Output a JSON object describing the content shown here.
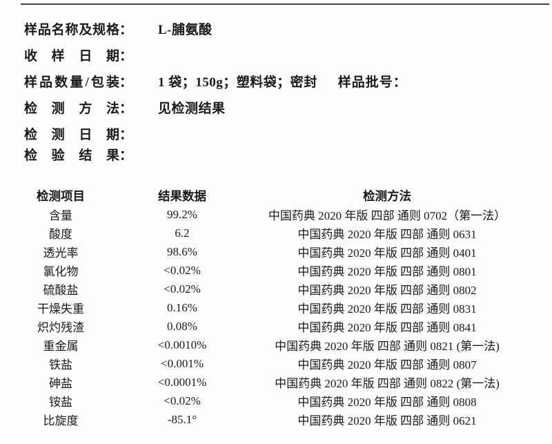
{
  "document": {
    "header": {
      "colon": "：",
      "fields": [
        {
          "name": "sample-name-spec",
          "label": "样品名称及规格",
          "value": "L-脯氨酸"
        },
        {
          "name": "receive-date",
          "label": "收样日期",
          "value": ""
        },
        {
          "name": "quantity-package",
          "label": "样品数量/包装",
          "value": "1 袋；150g；塑料袋；密封",
          "extra_label": "样品批号："
        },
        {
          "name": "test-method",
          "label": "检测方法",
          "value": "见检测结果"
        },
        {
          "name": "test-date",
          "label": "检测日期",
          "value": ""
        },
        {
          "name": "inspection-result",
          "label": "检验结果",
          "value": ""
        }
      ]
    },
    "table": {
      "columns": [
        "检测项目",
        "结果数据",
        "检测方法"
      ],
      "rows": [
        {
          "item": "含量",
          "result": "99.2%",
          "method": "中国药典 2020 年版 四部 通则 0702（第一法）"
        },
        {
          "item": "酸度",
          "result": "6.2",
          "method": "中国药典 2020 年版 四部 通则 0631"
        },
        {
          "item": "透光率",
          "result": "98.6%",
          "method": "中国药典 2020 年版 四部 通则 0401"
        },
        {
          "item": "氯化物",
          "result": "<0.02%",
          "method": "中国药典 2020 年版 四部 通则 0801"
        },
        {
          "item": "硫酸盐",
          "result": "<0.02%",
          "method": "中国药典 2020 年版 四部 通则 0802"
        },
        {
          "item": "干燥失重",
          "result": "0.16%",
          "method": "中国药典 2020 年版 四部 通则 0831"
        },
        {
          "item": "炽灼残渣",
          "result": "0.08%",
          "method": "中国药典 2020 年版 四部 通则 0841"
        },
        {
          "item": "重金属",
          "result": "<0.0010%",
          "method": "中国药典 2020 年版 四部 通则 0821 (第一法)"
        },
        {
          "item": "铁盐",
          "result": "<0.001%",
          "method": "中国药典 2020 年版 四部 通则 0807"
        },
        {
          "item": "砷盐",
          "result": "<0.0001%",
          "method": "中国药典 2020 年版 四部 通则 0822 (第一法)"
        },
        {
          "item": "铵盐",
          "result": "<0.02%",
          "method": "中国药典 2020 年版 四部 通则 0808"
        },
        {
          "item": "比旋度",
          "result": "-85.1°",
          "method": "中国药典 2020 年版 四部 通则 0621"
        }
      ]
    }
  }
}
